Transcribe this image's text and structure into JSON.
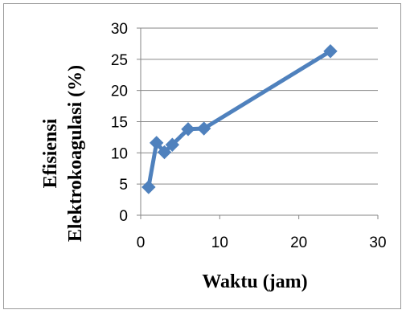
{
  "chart_data": {
    "type": "line",
    "xlabel": "Waktu (jam)",
    "ylabel_lines": [
      "Efisiensi",
      "Elektrokoagulasi (%)"
    ],
    "x_ticks": [
      "0",
      "10",
      "20",
      "30"
    ],
    "y_ticks": [
      "0",
      "5",
      "10",
      "15",
      "20",
      "25",
      "30"
    ],
    "xlim": [
      0,
      30
    ],
    "ylim": [
      0,
      30
    ],
    "grid": "horizontal",
    "legend": "none",
    "series": [
      {
        "x": [
          1,
          2,
          3,
          4,
          6,
          8,
          24
        ],
        "y": [
          4.5,
          11.6,
          10.1,
          11.3,
          13.8,
          13.9,
          26.3
        ]
      }
    ]
  },
  "colors": {
    "series": "#4f81bd",
    "grid": "#868686",
    "axis": "#868686"
  }
}
